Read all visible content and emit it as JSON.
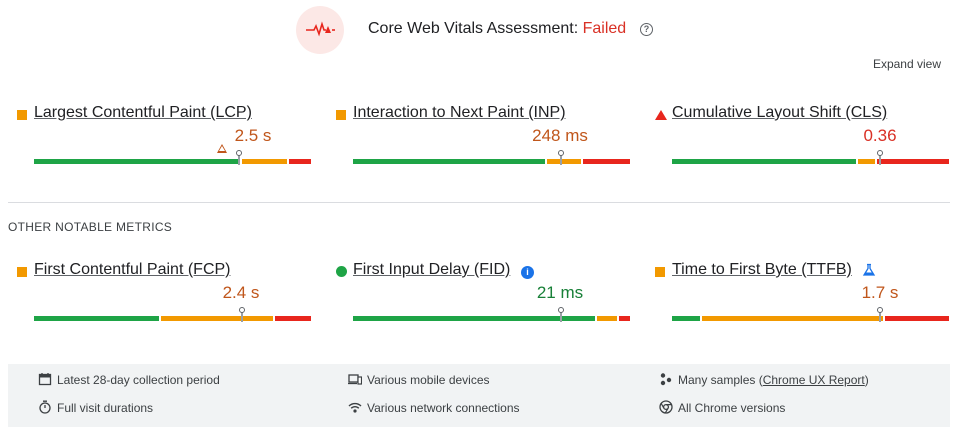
{
  "header": {
    "title": "Core Web Vitals Assessment:",
    "status": "Failed",
    "help_icon": "question-icon",
    "logo_icon": "pulse-icon"
  },
  "expand_view": "Expand view",
  "core_metrics": [
    {
      "name": "Largest Contentful Paint (LCP)",
      "value": "2.5 s",
      "rating": "needs-improvement"
    },
    {
      "name": "Interaction to Next Paint (INP)",
      "value": "248 ms",
      "rating": "needs-improvement"
    },
    {
      "name": "Cumulative Layout Shift (CLS)",
      "value": "0.36",
      "rating": "poor"
    }
  ],
  "other_label": "OTHER NOTABLE METRICS",
  "other_metrics": [
    {
      "name": "First Contentful Paint (FCP)",
      "value": "2.4 s",
      "rating": "needs-improvement"
    },
    {
      "name": "First Input Delay (FID)",
      "value": "21 ms",
      "rating": "good"
    },
    {
      "name": "Time to First Byte (TTFB)",
      "value": "1.7 s",
      "rating": "needs-improvement"
    }
  ],
  "distributions": {
    "lcp": {
      "good": 0.75,
      "needs_improvement": 0.17,
      "poor": 0.08,
      "percentile_position": 0.74
    },
    "inp": {
      "good": 0.7,
      "needs_improvement": 0.13,
      "poor": 0.17,
      "percentile_position": 0.75
    },
    "cls": {
      "good": 0.67,
      "needs_improvement": 0.07,
      "poor": 0.26,
      "percentile_position": 0.75
    },
    "fcp": {
      "good": 0.46,
      "needs_improvement": 0.41,
      "poor": 0.13,
      "percentile_position": 0.75
    },
    "fid": {
      "good": 0.88,
      "needs_improvement": 0.08,
      "poor": 0.04,
      "percentile_position": 0.75
    },
    "ttfb": {
      "good": 0.11,
      "needs_improvement": 0.66,
      "poor": 0.23,
      "percentile_position": 0.75
    }
  },
  "footer": {
    "items": [
      {
        "icon": "calendar-icon",
        "text": "Latest 28-day collection period"
      },
      {
        "icon": "devices-icon",
        "text": "Various mobile devices"
      },
      {
        "icon": "samples-icon",
        "text": "Many samples (",
        "link": "Chrome UX Report",
        "after": ")"
      },
      {
        "icon": "stopwatch-icon",
        "text": "Full visit durations"
      },
      {
        "icon": "wifi-icon",
        "text": "Various network connections"
      },
      {
        "icon": "chrome-icon",
        "text": "All Chrome versions"
      }
    ]
  },
  "colors": {
    "good": "#1ea446",
    "needs_improvement": "#f29900",
    "poor": "#e8261d",
    "failed_text": "#d93025"
  }
}
